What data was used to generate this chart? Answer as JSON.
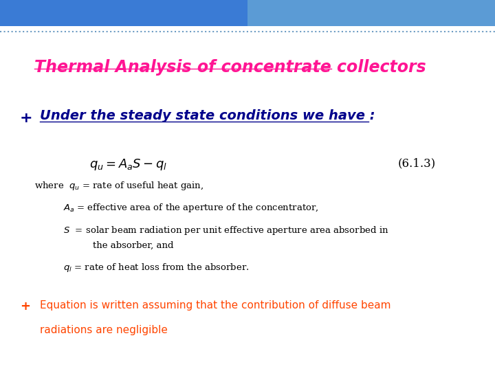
{
  "title": "Thermal Analysis of concentrate collectors",
  "title_color": "#FF1493",
  "title_fontsize": 17,
  "subtitle": "Under the steady state conditions we have :",
  "subtitle_color": "#00008B",
  "subtitle_fontsize": 14,
  "bullet_color": "#00008B",
  "eq_label": "(6.1.3)",
  "footer_bullet_color": "#FF4500",
  "footer_text_color": "#FF4500",
  "footer_line1": "Equation is written assuming that the contribution of diffuse beam",
  "footer_line2": "radiations are negligible",
  "footer_fontsize": 11,
  "bg_color": "#FFFFFF",
  "dot_border_color": "#4682B4"
}
